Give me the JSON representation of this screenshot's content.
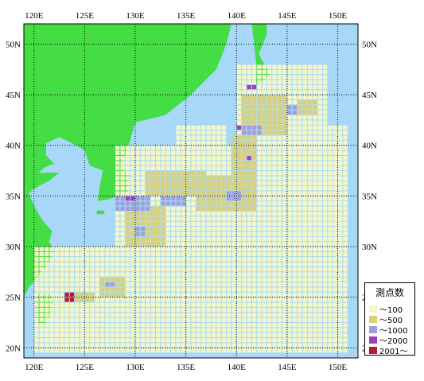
{
  "map": {
    "lon_range": [
      119,
      152
    ],
    "lat_range": [
      19,
      52
    ],
    "lon_ticks": [
      {
        "value": 120,
        "label": "120E"
      },
      {
        "value": 125,
        "label": "125E"
      },
      {
        "value": 130,
        "label": "130E"
      },
      {
        "value": 135,
        "label": "135E"
      },
      {
        "value": 140,
        "label": "140E"
      },
      {
        "value": 145,
        "label": "145E"
      },
      {
        "value": 150,
        "label": "150E"
      }
    ],
    "lat_ticks": [
      {
        "value": 50,
        "label": "50N"
      },
      {
        "value": 45,
        "label": "45N"
      },
      {
        "value": 40,
        "label": "40N"
      },
      {
        "value": 35,
        "label": "35N"
      },
      {
        "value": 30,
        "label": "30N"
      },
      {
        "value": 25,
        "label": "25N"
      },
      {
        "value": 20,
        "label": "20N"
      }
    ],
    "colors": {
      "sea": "#a8d8f8",
      "land": "#44dd44",
      "grid_line": "#000000"
    }
  },
  "legend": {
    "title": "測点数",
    "items": [
      {
        "label": "～100",
        "color": "#f4f7c8"
      },
      {
        "label": "～500",
        "color": "#d8d07a"
      },
      {
        "label": "～1000",
        "color": "#9aa0e0"
      },
      {
        "label": "～2000",
        "color": "#9a40c0"
      },
      {
        "label": "2001～",
        "color": "#b02030"
      }
    ]
  },
  "observation_counts": {
    "cell_size_deg": 0.5,
    "regions": [
      {
        "lon": [
          120,
          151
        ],
        "lat": [
          19.5,
          30
        ],
        "class": "～100"
      },
      {
        "lon": [
          128,
          151
        ],
        "lat": [
          30,
          40
        ],
        "class": "～100"
      },
      {
        "lon": [
          140,
          149
        ],
        "lat": [
          40,
          48
        ],
        "class": "～100"
      },
      {
        "lon": [
          145,
          151
        ],
        "lat": [
          30,
          42
        ],
        "class": "～100"
      },
      {
        "lon": [
          121,
          126
        ],
        "lat": [
          19.5,
          25
        ],
        "class": "～100"
      },
      {
        "lon": [
          134,
          139
        ],
        "lat": [
          38,
          42
        ],
        "class": "～100"
      },
      {
        "lon": [
          131,
          137
        ],
        "lat": [
          35,
          37.5
        ],
        "class": "～500"
      },
      {
        "lon": [
          136,
          142
        ],
        "lat": [
          33.5,
          37
        ],
        "class": "～500"
      },
      {
        "lon": [
          129,
          133
        ],
        "lat": [
          30,
          34
        ],
        "class": "～500"
      },
      {
        "lon": [
          139.5,
          142
        ],
        "lat": [
          37,
          41
        ],
        "class": "～500"
      },
      {
        "lon": [
          140.5,
          145
        ],
        "lat": [
          41,
          45
        ],
        "class": "～500"
      },
      {
        "lon": [
          124,
          126
        ],
        "lat": [
          24.5,
          25.5
        ],
        "class": "～500"
      },
      {
        "lon": [
          126.5,
          129
        ],
        "lat": [
          25,
          27
        ],
        "class": "～500"
      },
      {
        "lon": [
          146,
          148
        ],
        "lat": [
          43,
          44.5
        ],
        "class": "～500"
      },
      {
        "lon": [
          128,
          131.5
        ],
        "lat": [
          33.5,
          35
        ],
        "class": "～1000"
      },
      {
        "lon": [
          132.5,
          135
        ],
        "lat": [
          34,
          35
        ],
        "class": "～1000"
      },
      {
        "lon": [
          139,
          140.5
        ],
        "lat": [
          34.5,
          35.5
        ],
        "class": "～1000"
      },
      {
        "lon": [
          140.5,
          142.5
        ],
        "lat": [
          41,
          42
        ],
        "class": "～1000"
      },
      {
        "lon": [
          130,
          131
        ],
        "lat": [
          31,
          32
        ],
        "class": "～1000"
      },
      {
        "lon": [
          127,
          128
        ],
        "lat": [
          26,
          26.5
        ],
        "class": "～1000"
      },
      {
        "lon": [
          145,
          146
        ],
        "lat": [
          43,
          44
        ],
        "class": "～1000"
      },
      {
        "lon": [
          129,
          130
        ],
        "lat": [
          34.5,
          35
        ],
        "class": "～2000"
      },
      {
        "lon": [
          141,
          142
        ],
        "lat": [
          45.5,
          46
        ],
        "class": "～2000"
      },
      {
        "lon": [
          140,
          140.5
        ],
        "lat": [
          41.5,
          42
        ],
        "class": "～2000"
      },
      {
        "lon": [
          141,
          141.5
        ],
        "lat": [
          38.5,
          39
        ],
        "class": "～2000"
      },
      {
        "lon": [
          123,
          124
        ],
        "lat": [
          24.5,
          25.5
        ],
        "class": "2001～"
      }
    ]
  }
}
